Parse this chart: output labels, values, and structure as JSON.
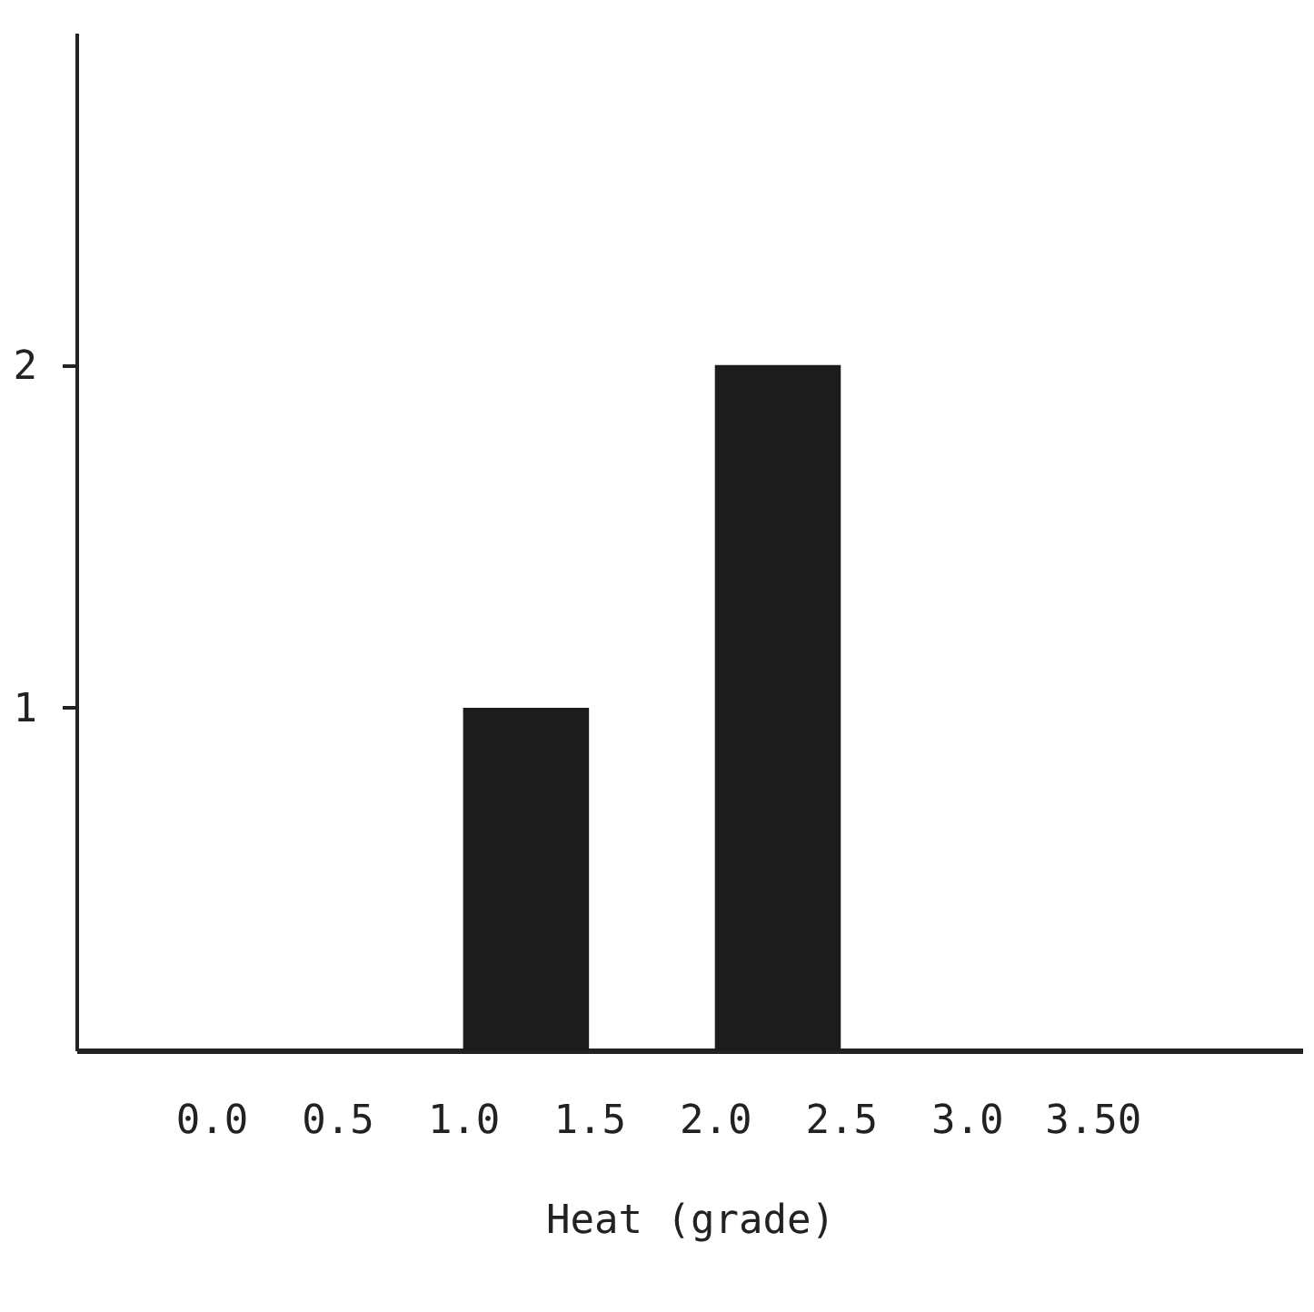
{
  "chart_data": {
    "type": "histogram",
    "xlabel": "Heat  (grade)",
    "bins": [
      0,
      0.5,
      1,
      1.5,
      2,
      2.5,
      3,
      3.5
    ],
    "values": [
      0,
      0,
      1,
      0,
      2,
      0,
      0
    ],
    "color": "#1c1c1c",
    "xlim": [
      -0.5,
      4.3
    ],
    "xticks": [
      {
        "value": 0,
        "label": "0.0"
      },
      {
        "value": 0.5,
        "label": "0.5"
      },
      {
        "value": 1,
        "label": "1.0"
      },
      {
        "value": 1.5,
        "label": "1.5"
      },
      {
        "value": 2,
        "label": "2.0"
      },
      {
        "value": 2.5,
        "label": "2.5"
      },
      {
        "value": 3,
        "label": "3.0"
      },
      {
        "value": 3.5,
        "label": "3.50"
      }
    ],
    "ylim": [
      0,
      2.97
    ],
    "yticks": [
      1,
      2
    ]
  }
}
